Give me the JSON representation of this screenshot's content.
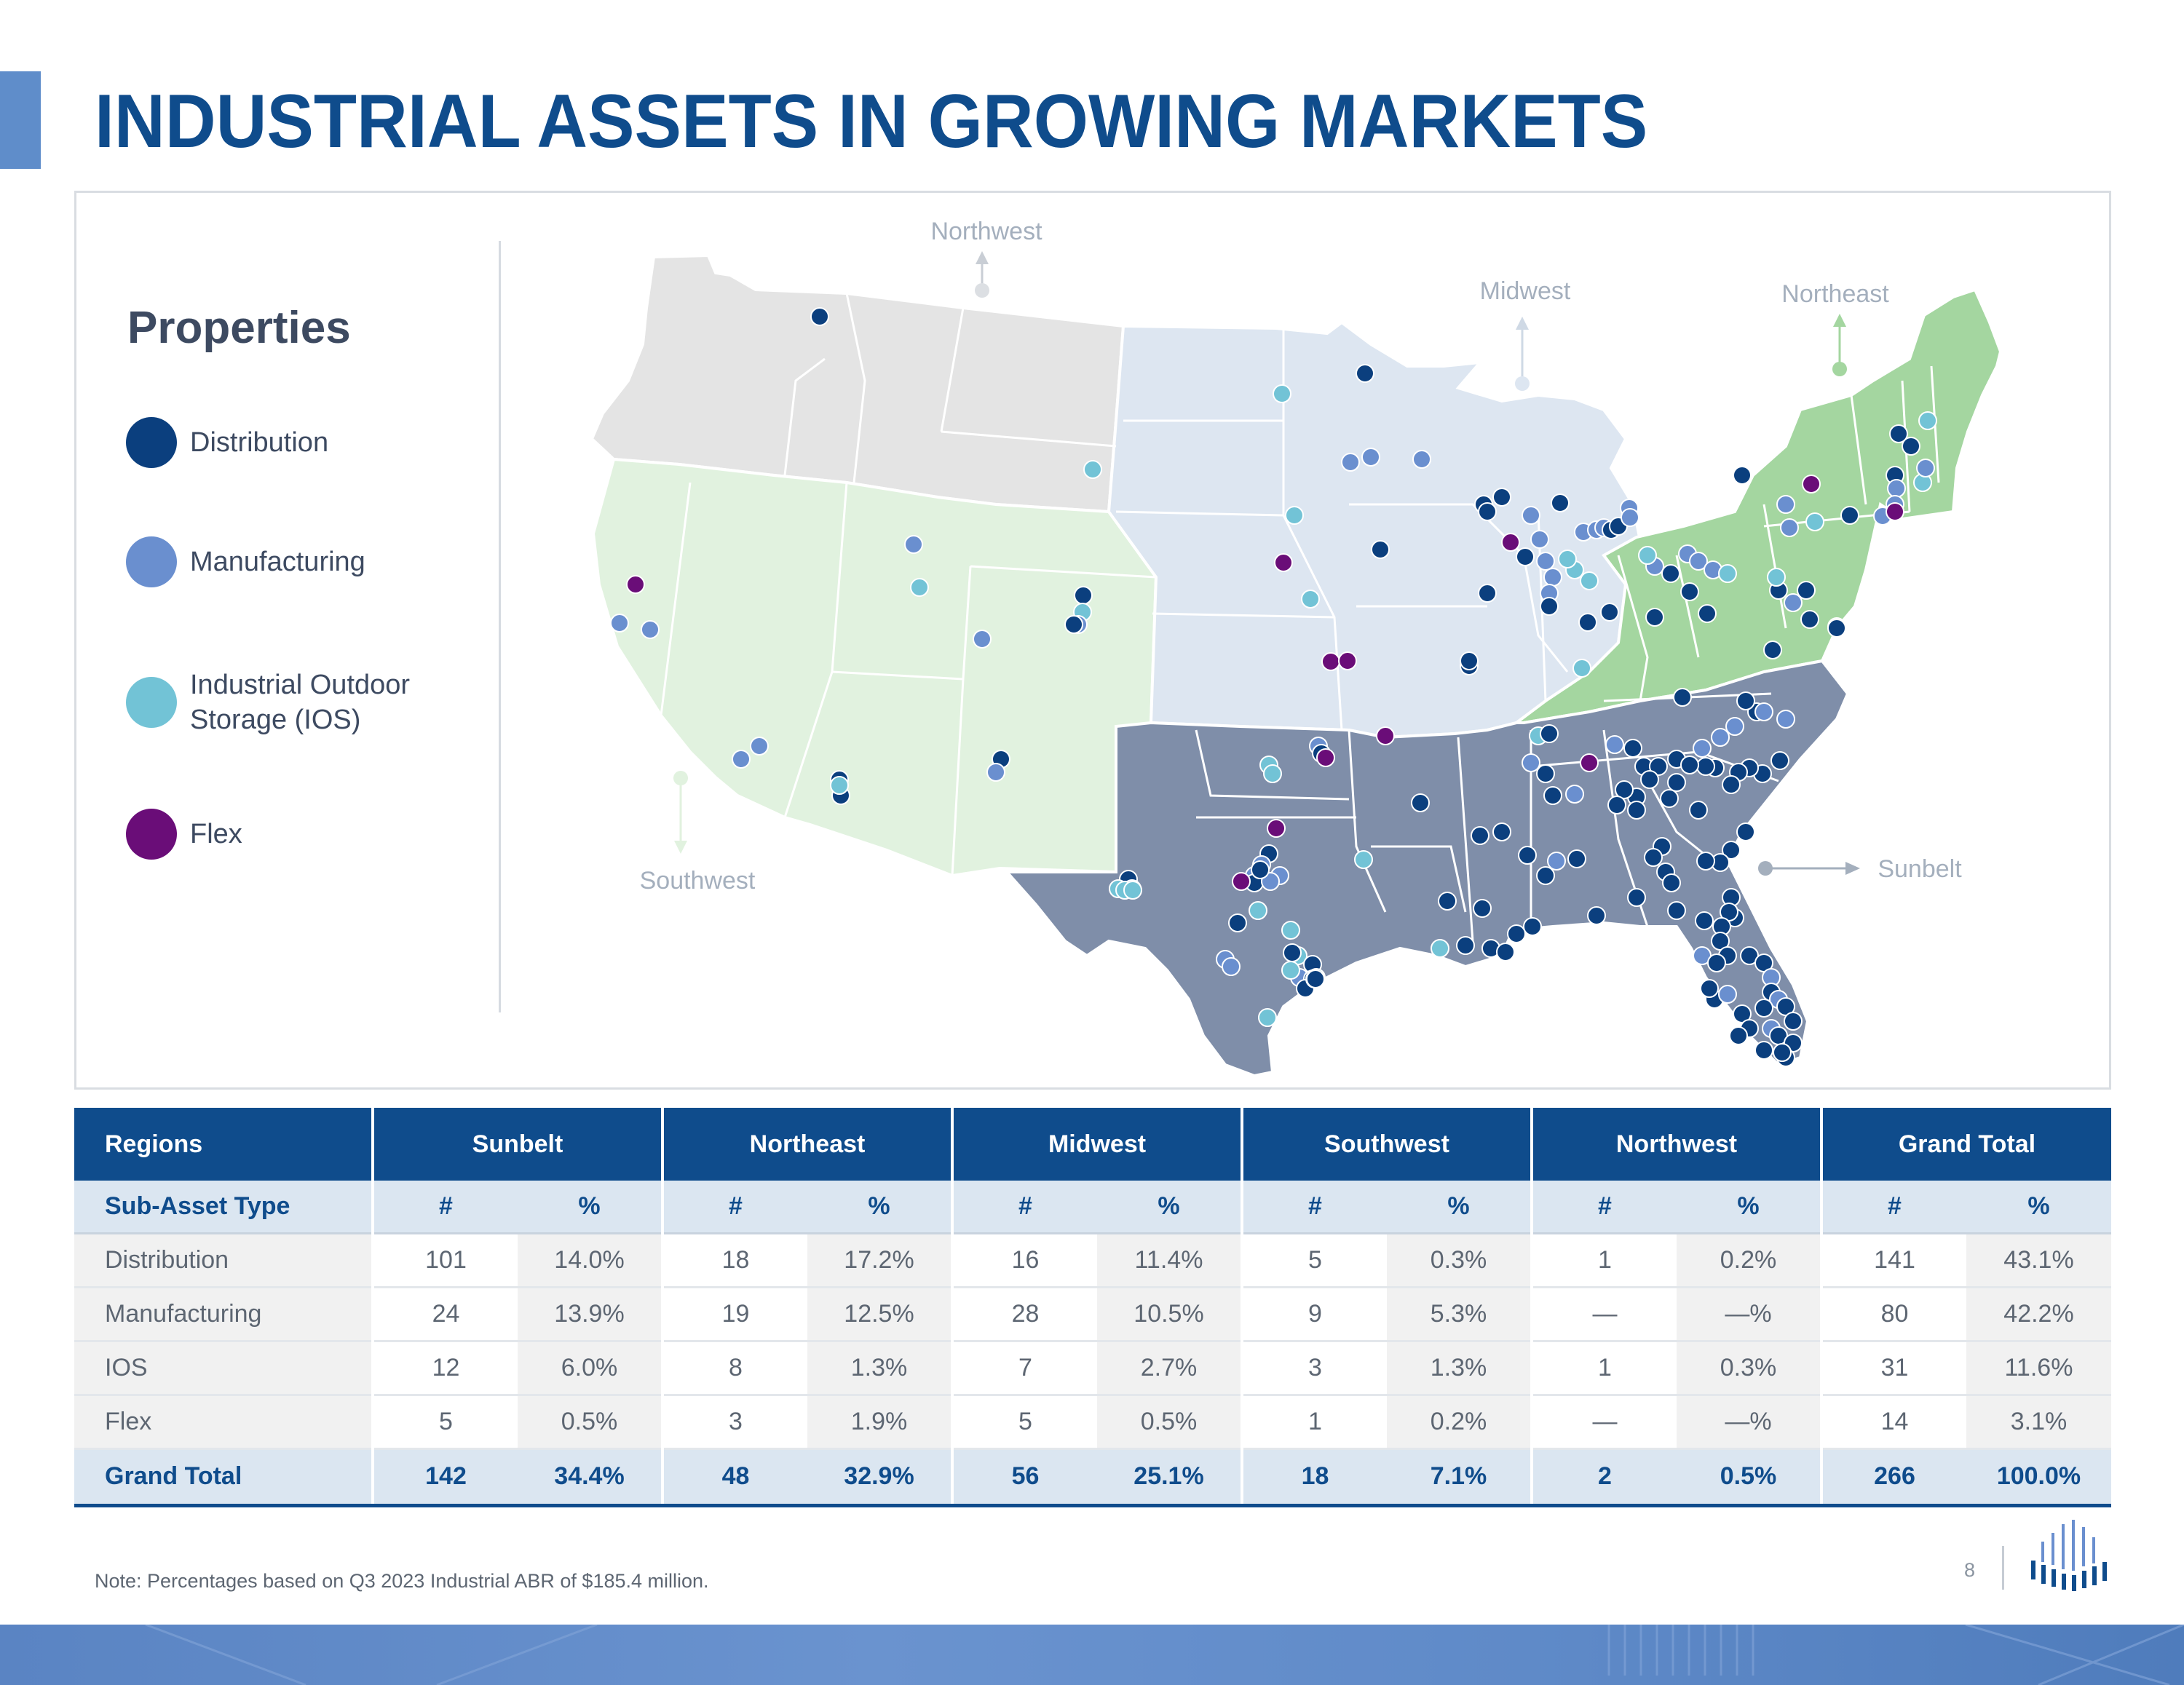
{
  "page": {
    "title": "INDUSTRIAL ASSETS IN GROWING MARKETS",
    "note": "Note: Percentages based on Q3 2023 Industrial ABR of $185.4 million.",
    "page_number": "8"
  },
  "colors": {
    "brand_blue": "#0f4c8c",
    "distribution": "#0b3f7e",
    "manufacturing": "#6a8fcf",
    "ios": "#72c3d6",
    "flex": "#6a0d78",
    "region_northwest": "#e4e4e4",
    "region_southwest": "#e1f2df",
    "region_midwest": "#dde6f1",
    "region_northeast": "#a4d6a0",
    "region_sunbelt": "#7f8ea9"
  },
  "legend": {
    "title": "Properties",
    "items": [
      {
        "label": "Distribution",
        "color": "#0b3f7e"
      },
      {
        "label": "Manufacturing",
        "color": "#6a8fcf"
      },
      {
        "label": "Industrial Outdoor Storage (IOS)",
        "color": "#72c3d6"
      },
      {
        "label": "Flex",
        "color": "#6a0d78"
      }
    ]
  },
  "map": {
    "regions": {
      "northwest": "Northwest",
      "midwest": "Midwest",
      "northeast": "Northeast",
      "southwest": "Southwest",
      "sunbelt": "Sunbelt"
    }
  },
  "table": {
    "header": [
      "Regions",
      "Sunbelt",
      "Northeast",
      "Midwest",
      "Southwest",
      "Northwest",
      "Grand Total"
    ],
    "subheader": {
      "label": "Sub-Asset Type",
      "count": "#",
      "pct": "%"
    },
    "rows": [
      {
        "label": "Distribution",
        "cells": [
          "101",
          "14.0%",
          "18",
          "17.2%",
          "16",
          "11.4%",
          "5",
          "0.3%",
          "1",
          "0.2%",
          "141",
          "43.1%"
        ]
      },
      {
        "label": "Manufacturing",
        "cells": [
          "24",
          "13.9%",
          "19",
          "12.5%",
          "28",
          "10.5%",
          "9",
          "5.3%",
          "—",
          "—%",
          "80",
          "42.2%"
        ]
      },
      {
        "label": "IOS",
        "cells": [
          "12",
          "6.0%",
          "8",
          "1.3%",
          "7",
          "2.7%",
          "3",
          "1.3%",
          "1",
          "0.3%",
          "31",
          "11.6%"
        ]
      },
      {
        "label": "Flex",
        "cells": [
          "5",
          "0.5%",
          "3",
          "1.9%",
          "5",
          "0.5%",
          "1",
          "0.2%",
          "—",
          "—%",
          "14",
          "3.1%"
        ]
      }
    ],
    "total": {
      "label": "Grand Total",
      "cells": [
        "142",
        "34.4%",
        "48",
        "32.9%",
        "56",
        "25.1%",
        "18",
        "7.1%",
        "2",
        "0.5%",
        "266",
        "100.0%"
      ]
    }
  }
}
